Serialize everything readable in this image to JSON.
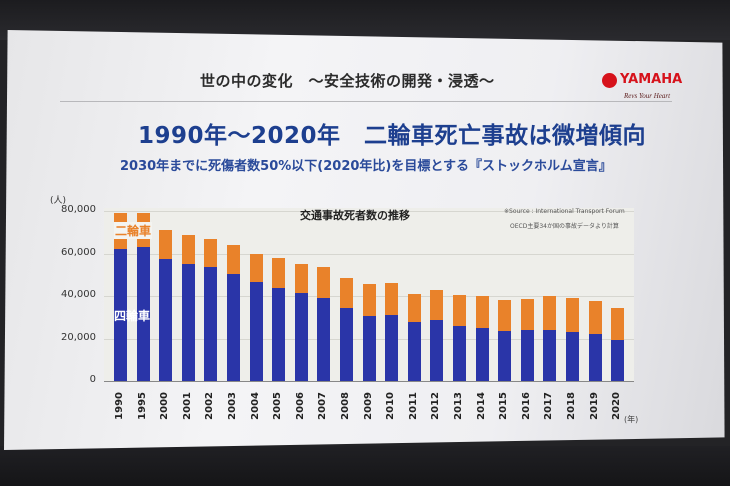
{
  "slide": {
    "header_title": "世の中の変化　～安全技術の開発・浸透～",
    "main_title": "1990年～2020年　二輪車死亡事故は微増傾向",
    "sub_title": "2030年までに死傷者数50%以下(2020年比)を目標とする『ストックホルム宣言』",
    "logo": {
      "brand": "YAMAHA",
      "tagline": "Revs Your Heart",
      "color": "#d6121b"
    }
  },
  "chart": {
    "title": "交通事故死者数の推移",
    "y_unit": "(人)",
    "x_unit": "(年)",
    "source_lines": [
      "※Source : International Transport Forum",
      "　OECD主要34か国の事故データより計算"
    ],
    "legend": {
      "two_wheel": "二輪車",
      "four_wheel": "四輪車"
    },
    "y_ticks": [
      "80,000",
      "60,000",
      "40,000",
      "20,000",
      "0"
    ],
    "colors": {
      "two_wheel": "#e9822a",
      "four_wheel": "#2a35a8"
    }
  },
  "chart_data": {
    "type": "bar",
    "stacked": true,
    "title": "交通事故死者数の推移",
    "xlabel": "(年)",
    "ylabel": "(人)",
    "ylim": [
      0,
      80000
    ],
    "grid": true,
    "legend_position": "inside-left",
    "annotations": [
      "※Source : International Transport Forum",
      "OECD主要34か国の事故データより計算"
    ],
    "categories": [
      "1990",
      "1995",
      "2000",
      "2001",
      "2002",
      "2003",
      "2004",
      "2005",
      "2006",
      "2007",
      "2008",
      "2009",
      "2010",
      "2011",
      "2012",
      "2013",
      "2014",
      "2015",
      "2016",
      "2017",
      "2018",
      "2019",
      "2020"
    ],
    "series": [
      {
        "name": "四輪車",
        "color": "#2a35a8",
        "values": [
          62000,
          63000,
          57500,
          55000,
          53500,
          50500,
          46500,
          44000,
          41500,
          39000,
          34500,
          30500,
          31000,
          28000,
          28500,
          26000,
          25000,
          23500,
          24000,
          24000,
          23000,
          22000,
          19500
        ]
      },
      {
        "name": "二輪車",
        "color": "#e9822a",
        "values": [
          17000,
          16000,
          13500,
          13500,
          13500,
          13500,
          13500,
          14000,
          13500,
          14500,
          14000,
          15000,
          15000,
          13000,
          14500,
          14500,
          15000,
          14500,
          14500,
          16000,
          16000,
          15500,
          15000
        ]
      }
    ],
    "totals": [
      79000,
      79000,
      71000,
      68500,
      67000,
      64000,
      60000,
      58000,
      55000,
      53500,
      48500,
      45500,
      46000,
      41000,
      43000,
      40500,
      40000,
      38000,
      38500,
      40000,
      39000,
      37500,
      34500
    ]
  }
}
